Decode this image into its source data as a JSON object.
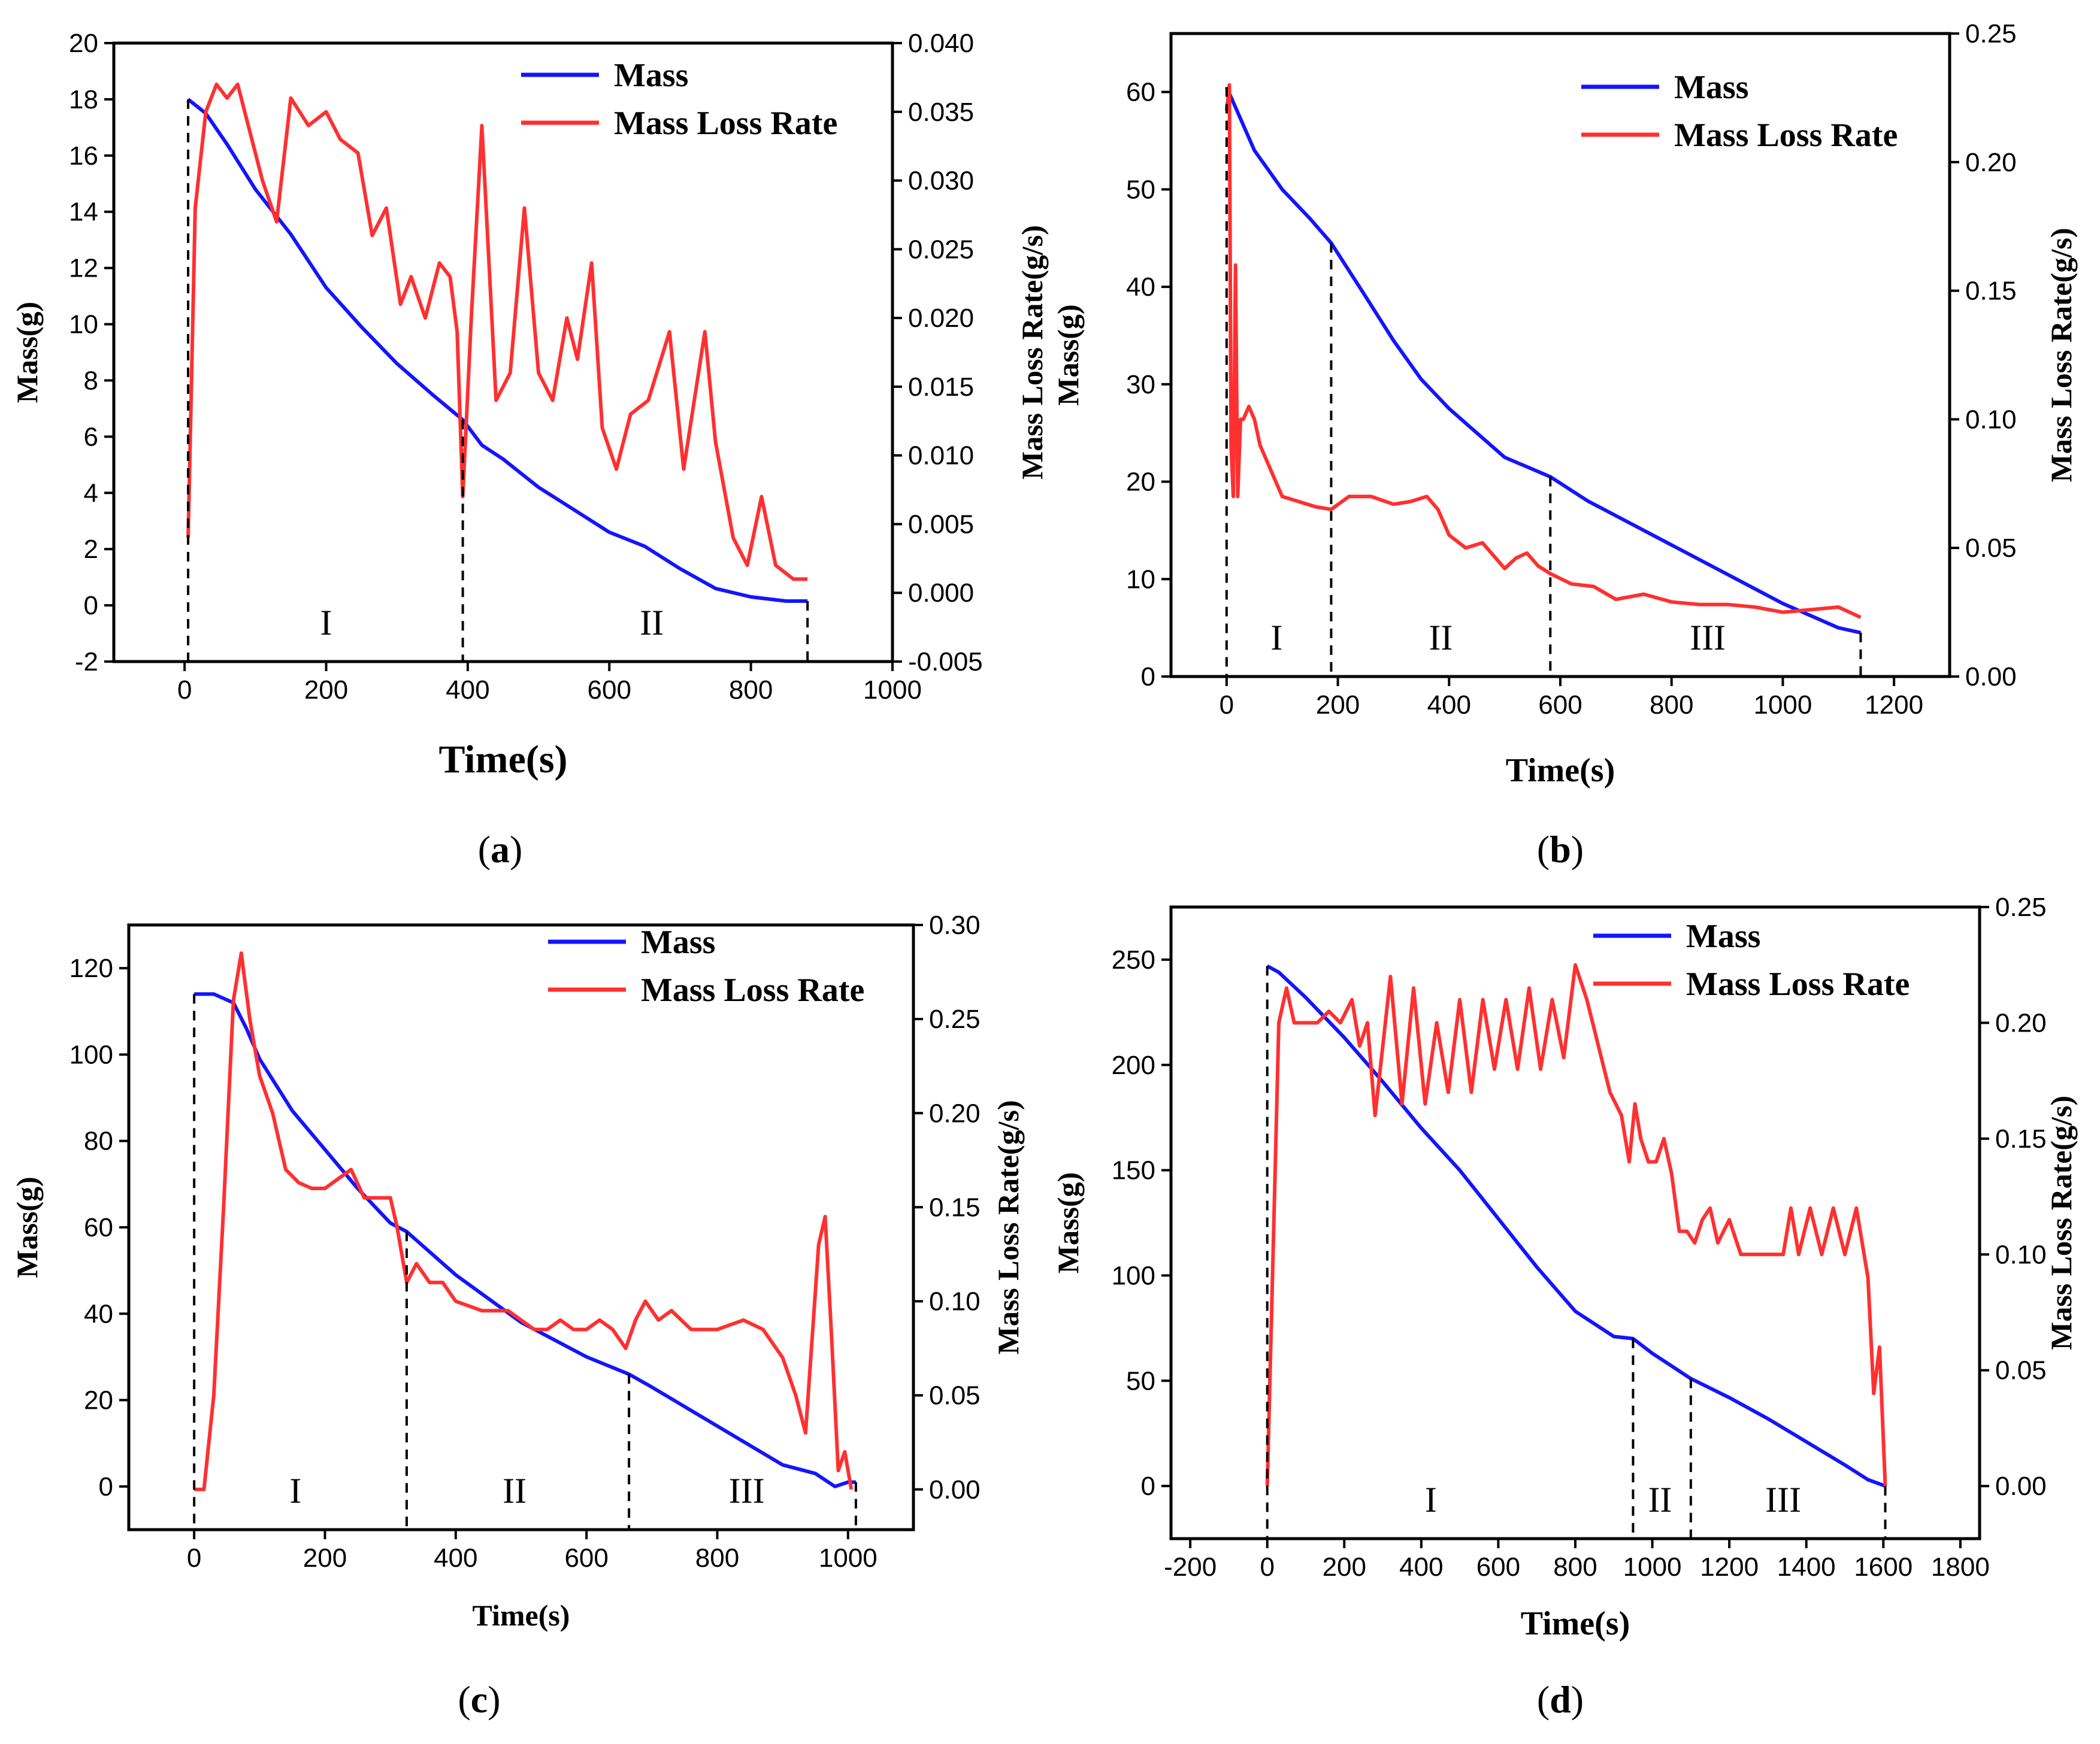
{
  "colors": {
    "mass": "#1414ff",
    "mass_loss_rate": "#ff3030"
  },
  "chart_data": [
    {
      "panel": "a",
      "type": "line",
      "xlabel": "Time(s)",
      "ylabel": "Mass(g)",
      "y2label": "Mass Loss Rate(g/s)",
      "xlim": [
        -100,
        1000
      ],
      "ylim": [
        -2,
        20
      ],
      "y2lim": [
        -0.005,
        0.04
      ],
      "xticks": [
        0,
        200,
        400,
        600,
        800,
        1000
      ],
      "yticks": [
        -2,
        0,
        2,
        4,
        6,
        8,
        10,
        12,
        14,
        16,
        18,
        20
      ],
      "y2ticks": [
        -0.005,
        0.0,
        0.005,
        0.01,
        0.015,
        0.02,
        0.025,
        0.03,
        0.035,
        0.04
      ],
      "xtick_labels": [
        "0",
        "200",
        "400",
        "600",
        "800",
        "1000"
      ],
      "ytick_labels": [
        "-2",
        "0",
        "2",
        "4",
        "6",
        "8",
        "10",
        "12",
        "14",
        "16",
        "18",
        "20"
      ],
      "y2tick_labels": [
        "-0.005",
        "0.000",
        "0.005",
        "0.010",
        "0.015",
        "0.020",
        "0.025",
        "0.030",
        "0.035",
        "0.040"
      ],
      "legend": [
        "Mass",
        "Mass Loss Rate"
      ],
      "legend_position": "top-right",
      "stage_dividers": [
        5,
        393,
        880
      ],
      "stages": [
        {
          "label": "I",
          "x": 200
        },
        {
          "label": "II",
          "x": 660
        }
      ],
      "series": [
        {
          "name": "Mass",
          "axis": "left",
          "color": "mass",
          "x": [
            5,
            30,
            60,
            100,
            150,
            200,
            250,
            300,
            350,
            393,
            420,
            450,
            500,
            550,
            600,
            650,
            700,
            750,
            800,
            850,
            880
          ],
          "y": [
            18.0,
            17.5,
            16.4,
            14.8,
            13.2,
            11.3,
            9.9,
            8.6,
            7.5,
            6.6,
            5.7,
            5.2,
            4.2,
            3.4,
            2.6,
            2.1,
            1.3,
            0.6,
            0.3,
            0.15,
            0.15
          ]
        },
        {
          "name": "Mass Loss Rate",
          "axis": "right",
          "color": "mass_loss_rate",
          "x": [
            5,
            15,
            30,
            45,
            60,
            75,
            90,
            110,
            130,
            150,
            175,
            200,
            220,
            245,
            265,
            285,
            305,
            320,
            340,
            360,
            375,
            385,
            393,
            405,
            420,
            440,
            460,
            480,
            500,
            520,
            540,
            555,
            575,
            590,
            610,
            630,
            655,
            685,
            705,
            735,
            750,
            775,
            795,
            815,
            835,
            860,
            880
          ],
          "y": [
            0.004,
            0.028,
            0.035,
            0.037,
            0.036,
            0.037,
            0.034,
            0.03,
            0.027,
            0.036,
            0.034,
            0.035,
            0.033,
            0.032,
            0.026,
            0.028,
            0.021,
            0.023,
            0.02,
            0.024,
            0.023,
            0.019,
            0.007,
            0.02,
            0.034,
            0.014,
            0.016,
            0.028,
            0.016,
            0.014,
            0.02,
            0.017,
            0.024,
            0.012,
            0.009,
            0.013,
            0.014,
            0.019,
            0.009,
            0.019,
            0.011,
            0.004,
            0.002,
            0.007,
            0.002,
            0.001,
            0.001
          ]
        }
      ]
    },
    {
      "panel": "b",
      "type": "line",
      "xlabel": "Time(s)",
      "ylabel": "Mass(g)",
      "y2label": "Mass Loss Rate(g/s)",
      "xlim": [
        -100,
        1300
      ],
      "ylim": [
        0,
        66
      ],
      "y2lim": [
        0.0,
        0.25
      ],
      "xticks": [
        0,
        200,
        400,
        600,
        800,
        1000,
        1200
      ],
      "yticks": [
        0,
        10,
        20,
        30,
        40,
        50,
        60
      ],
      "y2ticks": [
        0.0,
        0.05,
        0.1,
        0.15,
        0.2,
        0.25
      ],
      "xtick_labels": [
        "0",
        "200",
        "400",
        "600",
        "800",
        "1000",
        "1200"
      ],
      "ytick_labels": [
        "0",
        "10",
        "20",
        "30",
        "40",
        "50",
        "60"
      ],
      "y2tick_labels": [
        "0.00",
        "0.05",
        "0.10",
        "0.15",
        "0.20",
        "0.25"
      ],
      "legend": [
        "Mass",
        "Mass Loss Rate"
      ],
      "legend_position": "top-right",
      "stage_dividers": [
        0,
        188,
        582,
        1140
      ],
      "stages": [
        {
          "label": "I",
          "x": 90
        },
        {
          "label": "II",
          "x": 385
        },
        {
          "label": "III",
          "x": 865
        }
      ],
      "series": [
        {
          "name": "Mass",
          "axis": "left",
          "color": "mass",
          "x": [
            0,
            50,
            100,
            150,
            188,
            250,
            300,
            350,
            400,
            450,
            500,
            582,
            650,
            700,
            800,
            900,
            1000,
            1100,
            1140
          ],
          "y": [
            60.5,
            54.0,
            50.0,
            47.0,
            44.5,
            39.0,
            34.5,
            30.5,
            27.5,
            25.0,
            22.5,
            20.5,
            18.0,
            16.5,
            13.5,
            10.5,
            7.5,
            5.0,
            4.5
          ]
        },
        {
          "name": "Mass Loss Rate",
          "axis": "right",
          "color": "mass_loss_rate",
          "x": [
            0,
            5,
            8,
            12,
            16,
            20,
            25,
            30,
            40,
            50,
            60,
            80,
            100,
            130,
            160,
            188,
            220,
            260,
            300,
            330,
            360,
            380,
            400,
            430,
            460,
            480,
            500,
            520,
            540,
            560,
            582,
            620,
            660,
            700,
            750,
            800,
            850,
            900,
            950,
            1000,
            1050,
            1100,
            1140
          ],
          "y": [
            0.22,
            0.23,
            0.09,
            0.07,
            0.16,
            0.07,
            0.1,
            0.1,
            0.105,
            0.1,
            0.09,
            0.08,
            0.07,
            0.068,
            0.066,
            0.065,
            0.07,
            0.07,
            0.067,
            0.068,
            0.07,
            0.065,
            0.055,
            0.05,
            0.052,
            0.047,
            0.042,
            0.046,
            0.048,
            0.043,
            0.04,
            0.036,
            0.035,
            0.03,
            0.032,
            0.029,
            0.028,
            0.028,
            0.027,
            0.025,
            0.026,
            0.027,
            0.023
          ]
        }
      ]
    },
    {
      "panel": "c",
      "type": "line",
      "xlabel": "Time(s)",
      "ylabel": "Mass(g)",
      "y2label": "Mass Loss Rate(g/s)",
      "xlim": [
        -100,
        1100
      ],
      "ylim": [
        -10,
        130
      ],
      "y2lim": [
        -0.0214,
        0.3
      ],
      "xticks": [
        0,
        200,
        400,
        600,
        800,
        1000
      ],
      "yticks": [
        0,
        20,
        40,
        60,
        80,
        100,
        120
      ],
      "y2ticks": [
        0.0,
        0.05,
        0.1,
        0.15,
        0.2,
        0.25,
        0.3
      ],
      "xtick_labels": [
        "0",
        "200",
        "400",
        "600",
        "800",
        "1000"
      ],
      "ytick_labels": [
        "0",
        "20",
        "40",
        "60",
        "80",
        "100",
        "120"
      ],
      "y2tick_labels": [
        "0.00",
        "0.05",
        "0.10",
        "0.15",
        "0.20",
        "0.25",
        "0.30"
      ],
      "legend": [
        "Mass",
        "Mass Loss Rate"
      ],
      "legend_position": "top-right",
      "stage_dividers": [
        0,
        325,
        665,
        1012
      ],
      "stages": [
        {
          "label": "I",
          "x": 155
        },
        {
          "label": "II",
          "x": 490
        },
        {
          "label": "III",
          "x": 845
        }
      ],
      "series": [
        {
          "name": "Mass",
          "axis": "left",
          "color": "mass",
          "x": [
            0,
            30,
            60,
            80,
            100,
            150,
            200,
            250,
            300,
            325,
            400,
            500,
            600,
            665,
            700,
            800,
            900,
            950,
            980,
            1000,
            1012
          ],
          "y": [
            114,
            114,
            112,
            106,
            99,
            87,
            78,
            69,
            61,
            59,
            49,
            38,
            30,
            26,
            23,
            14,
            5,
            3,
            0,
            1,
            1
          ]
        },
        {
          "name": "Mass Loss Rate",
          "axis": "right",
          "color": "mass_loss_rate",
          "x": [
            0,
            15,
            30,
            45,
            60,
            72,
            85,
            100,
            120,
            140,
            160,
            180,
            200,
            220,
            240,
            260,
            280,
            300,
            310,
            325,
            340,
            360,
            380,
            400,
            440,
            480,
            500,
            520,
            540,
            560,
            580,
            600,
            620,
            640,
            660,
            675,
            690,
            710,
            730,
            760,
            800,
            840,
            870,
            900,
            920,
            935,
            945,
            955,
            965,
            975,
            985,
            995,
            1005
          ],
          "y": [
            0.0,
            0.0,
            0.05,
            0.15,
            0.26,
            0.285,
            0.25,
            0.22,
            0.2,
            0.17,
            0.163,
            0.16,
            0.16,
            0.165,
            0.17,
            0.155,
            0.155,
            0.155,
            0.14,
            0.11,
            0.12,
            0.11,
            0.11,
            0.1,
            0.095,
            0.095,
            0.09,
            0.085,
            0.085,
            0.09,
            0.085,
            0.085,
            0.09,
            0.085,
            0.075,
            0.09,
            0.1,
            0.09,
            0.095,
            0.085,
            0.085,
            0.09,
            0.085,
            0.07,
            0.05,
            0.03,
            0.08,
            0.13,
            0.145,
            0.08,
            0.01,
            0.02,
            0.0
          ]
        }
      ]
    },
    {
      "panel": "d",
      "type": "line",
      "xlabel": "Time(s)",
      "ylabel": "Mass(g)",
      "y2label": "Mass Loss Rate(g/s)",
      "xlim": [
        -250,
        1850
      ],
      "ylim": [
        -25,
        275
      ],
      "y2lim": [
        -0.0227,
        0.25
      ],
      "xticks": [
        -200,
        0,
        200,
        400,
        600,
        800,
        1000,
        1200,
        1400,
        1600,
        1800
      ],
      "yticks": [
        0,
        50,
        100,
        150,
        200,
        250
      ],
      "y2ticks": [
        0.0,
        0.05,
        0.1,
        0.15,
        0.2,
        0.25
      ],
      "xtick_labels": [
        "-200",
        "0",
        "200",
        "400",
        "600",
        "800",
        "1000",
        "1200",
        "1400",
        "1600",
        "1800"
      ],
      "ytick_labels": [
        "0",
        "50",
        "100",
        "150",
        "200",
        "250"
      ],
      "y2tick_labels": [
        "0.00",
        "0.05",
        "0.10",
        "0.15",
        "0.20",
        "0.25"
      ],
      "legend": [
        "Mass",
        "Mass Loss Rate"
      ],
      "legend_position": "top-right",
      "stage_dividers": [
        0,
        950,
        1100,
        1605
      ],
      "stages": [
        {
          "label": "I",
          "x": 425
        },
        {
          "label": "II",
          "x": 1020
        },
        {
          "label": "III",
          "x": 1340
        }
      ],
      "series": [
        {
          "name": "Mass",
          "axis": "left",
          "color": "mass",
          "x": [
            0,
            30,
            100,
            200,
            300,
            400,
            500,
            600,
            700,
            800,
            900,
            950,
            1000,
            1100,
            1200,
            1300,
            1400,
            1500,
            1560,
            1605
          ],
          "y": [
            247,
            244,
            232,
            213,
            192,
            170,
            150,
            127,
            104,
            83,
            71,
            70,
            63,
            51,
            42,
            32,
            21,
            10,
            3,
            0
          ]
        },
        {
          "name": "Mass Loss Rate",
          "axis": "right",
          "color": "mass_loss_rate",
          "x": [
            0,
            15,
            30,
            50,
            70,
            100,
            130,
            160,
            190,
            220,
            240,
            260,
            280,
            300,
            320,
            350,
            380,
            410,
            440,
            470,
            500,
            530,
            560,
            590,
            620,
            650,
            680,
            710,
            740,
            770,
            800,
            830,
            860,
            890,
            920,
            940,
            955,
            970,
            990,
            1010,
            1030,
            1050,
            1070,
            1090,
            1110,
            1130,
            1150,
            1170,
            1200,
            1230,
            1260,
            1300,
            1340,
            1360,
            1380,
            1410,
            1440,
            1470,
            1500,
            1530,
            1560,
            1575,
            1590,
            1605
          ],
          "y": [
            0.0,
            0.1,
            0.2,
            0.215,
            0.2,
            0.2,
            0.2,
            0.205,
            0.2,
            0.21,
            0.19,
            0.2,
            0.16,
            0.19,
            0.22,
            0.165,
            0.215,
            0.165,
            0.2,
            0.17,
            0.21,
            0.17,
            0.21,
            0.18,
            0.21,
            0.18,
            0.215,
            0.18,
            0.21,
            0.185,
            0.225,
            0.21,
            0.19,
            0.17,
            0.16,
            0.14,
            0.165,
            0.15,
            0.14,
            0.14,
            0.15,
            0.135,
            0.11,
            0.11,
            0.105,
            0.115,
            0.12,
            0.105,
            0.115,
            0.1,
            0.1,
            0.1,
            0.1,
            0.12,
            0.1,
            0.12,
            0.1,
            0.12,
            0.1,
            0.12,
            0.09,
            0.04,
            0.06,
            0.0
          ]
        }
      ]
    }
  ],
  "panel_labels": [
    {
      "open": "(",
      "letter": "a",
      "close": ")"
    },
    {
      "open": "(",
      "letter": "b",
      "close": ")"
    },
    {
      "open": "(",
      "letter": "c",
      "close": ")"
    },
    {
      "open": "(",
      "letter": "d",
      "close": ")"
    }
  ]
}
